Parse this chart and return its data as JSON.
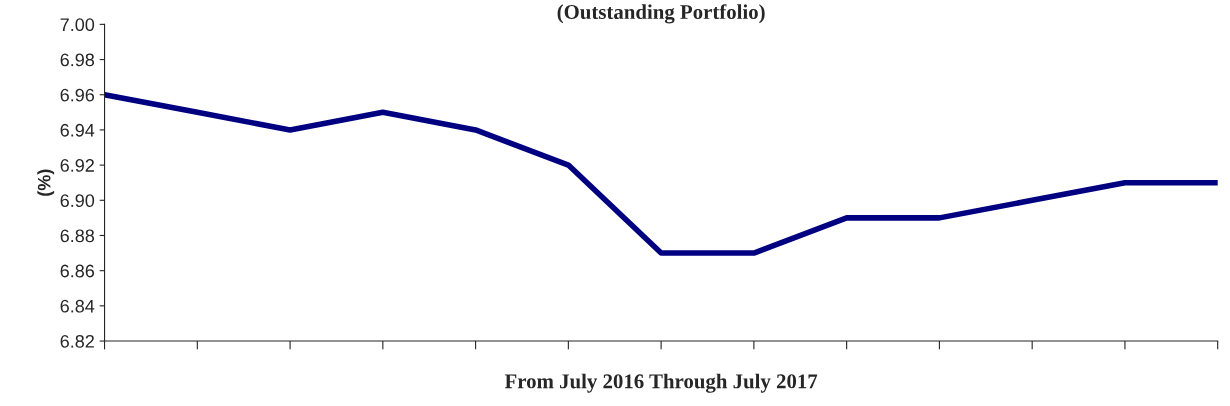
{
  "chart_data": {
    "type": "line",
    "title": "(Outstanding Portfolio)",
    "xlabel": "From July 2016 Through July 2017",
    "ylabel": "(%)",
    "categories": [
      null,
      null,
      null,
      null,
      null,
      null,
      null,
      null,
      null,
      null,
      null,
      null,
      null
    ],
    "series": [
      {
        "color": "#000080",
        "values": [
          6.96,
          6.95,
          6.94,
          6.95,
          6.94,
          6.92,
          6.87,
          6.87,
          6.89,
          6.89,
          6.9,
          6.91,
          6.91
        ]
      }
    ],
    "ylim": [
      6.82,
      7.0
    ],
    "yticks": [
      {
        "value": 6.82,
        "label": "6.82"
      },
      {
        "value": 6.84,
        "label": "6.84"
      },
      {
        "value": 6.86,
        "label": "6.86"
      },
      {
        "value": 6.88,
        "label": "6.88"
      },
      {
        "value": 6.9,
        "label": "6.90"
      },
      {
        "value": 6.92,
        "label": "6.92"
      },
      {
        "value": 6.94,
        "label": "6.94"
      },
      {
        "value": 6.96,
        "label": "6.96"
      },
      {
        "value": 6.98,
        "label": "6.98"
      },
      {
        "value": 7.0,
        "label": "7.00"
      }
    ],
    "grid": false,
    "legend": false,
    "marker": "none",
    "line_style": "solid"
  }
}
